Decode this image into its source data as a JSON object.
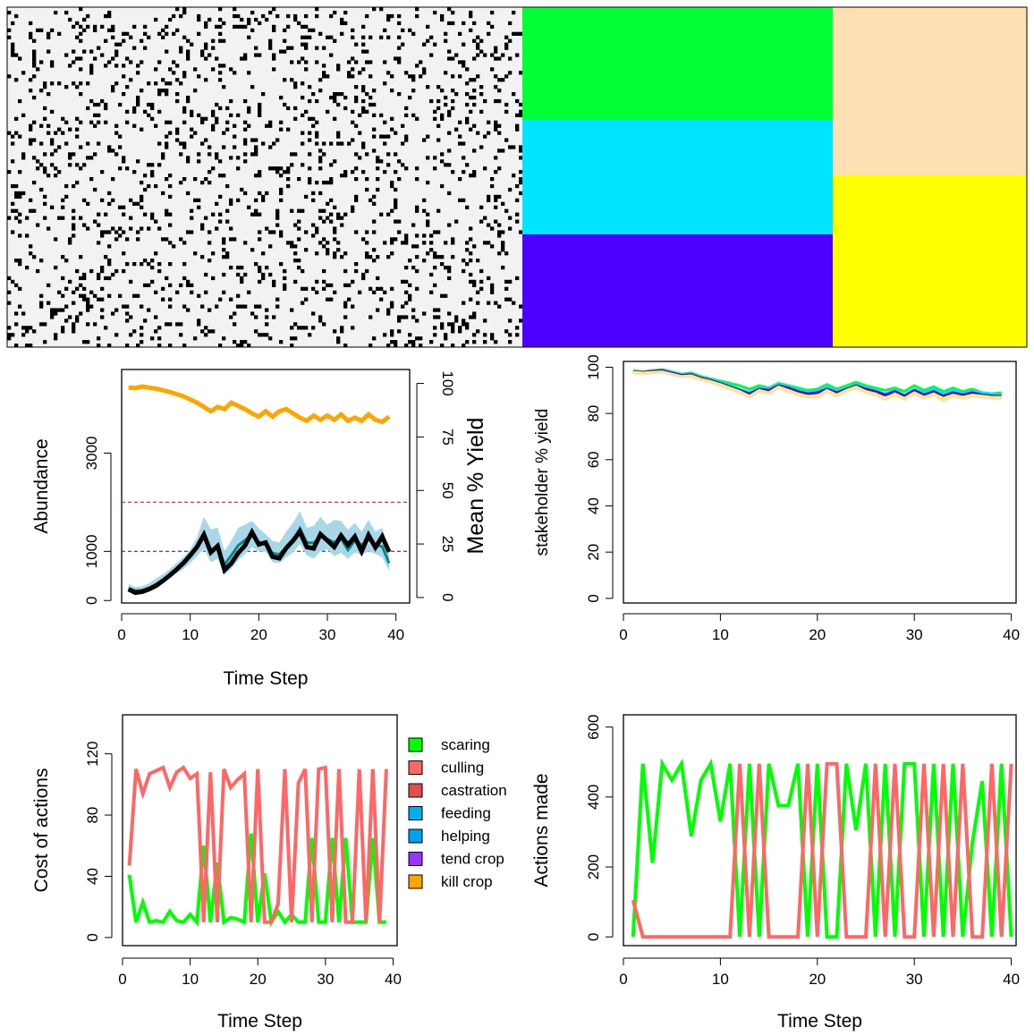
{
  "chart_data": [
    {
      "type": "heatmap",
      "panel": "landscape-agents",
      "colors": {
        "background": "#f2f2f2",
        "agent": "#000000"
      },
      "grid": {
        "cols": 144,
        "rows": 96,
        "agent_fraction": 0.12
      }
    },
    {
      "type": "heatmap",
      "panel": "landscape-ownership",
      "cells": [
        {
          "owner": 1,
          "color": "#00ff33"
        },
        {
          "owner": 2,
          "color": "#00e5ff"
        },
        {
          "owner": 3,
          "color": "#4c00ff"
        },
        {
          "owner": 4,
          "color": "#ffe0b3"
        },
        {
          "owner": 5,
          "color": "#ffff00"
        }
      ]
    },
    {
      "type": "line",
      "panel": "abundance",
      "xlabel": "Time Step",
      "ylabel": "Abundance",
      "y2label": "Mean % Yield",
      "xlim": [
        0,
        42
      ],
      "ylim": [
        -50,
        4700
      ],
      "y2lim": [
        -2.55,
        106.5
      ],
      "xticks": [
        "0",
        "10",
        "20",
        "30",
        "40"
      ],
      "yticks": [
        "0",
        "1000",
        "3000"
      ],
      "y2ticks": [
        "0",
        "25",
        "50",
        "75",
        "100"
      ],
      "ytick_values": [
        0,
        1000,
        3000
      ],
      "y2tick_values": [
        0,
        25,
        50,
        75,
        100
      ],
      "hlines": [
        {
          "value": 2000,
          "color": "#ff0000"
        },
        {
          "value": 1000,
          "color": "#0000ff"
        }
      ],
      "x": [
        1,
        2,
        3,
        4,
        5,
        6,
        7,
        8,
        9,
        10,
        11,
        12,
        13,
        14,
        15,
        16,
        17,
        18,
        19,
        20,
        21,
        22,
        23,
        24,
        25,
        26,
        27,
        28,
        29,
        30,
        31,
        32,
        33,
        34,
        35,
        36,
        37,
        38,
        39
      ],
      "series": [
        {
          "color": "#a8d8e8",
          "kind": "band",
          "lower": [
            210,
            180,
            190,
            230,
            290,
            370,
            450,
            550,
            640,
            760,
            900,
            1050,
            780,
            850,
            520,
            650,
            820,
            950,
            1080,
            1000,
            990,
            780,
            760,
            880,
            980,
            1150,
            920,
            850,
            1000,
            1040,
            900,
            970,
            850,
            980,
            930,
            1000,
            950,
            880,
            600
          ],
          "upper": [
            340,
            270,
            290,
            350,
            450,
            530,
            640,
            760,
            880,
            1040,
            1290,
            1700,
            1450,
            1480,
            1000,
            1220,
            1480,
            1540,
            1620,
            1470,
            1350,
            1210,
            1180,
            1400,
            1580,
            1820,
            1480,
            1520,
            1700,
            1540,
            1640,
            1620,
            1440,
            1580,
            1400,
            1640,
            1400,
            1480,
            1000
          ]
        },
        {
          "color": "#008b8b",
          "values": [
            250,
            200,
            210,
            260,
            330,
            420,
            520,
            640,
            760,
            900,
            1060,
            1330,
            1020,
            1100,
            730,
            920,
            1120,
            1230,
            1340,
            1190,
            1140,
            960,
            940,
            1080,
            1230,
            1470,
            1180,
            1170,
            1300,
            1250,
            1180,
            1260,
            1030,
            1220,
            1130,
            1250,
            1120,
            1100,
            760
          ]
        },
        {
          "color": "#000000",
          "values": [
            230,
            160,
            180,
            230,
            300,
            400,
            510,
            630,
            760,
            920,
            1090,
            1340,
            980,
            1110,
            620,
            760,
            970,
            1120,
            1390,
            1140,
            1180,
            890,
            860,
            1070,
            1220,
            1400,
            1090,
            1060,
            1350,
            1220,
            1090,
            1320,
            1130,
            1300,
            1000,
            1330,
            1080,
            1300,
            990
          ]
        },
        {
          "color": "#ffa500",
          "axis": "y2",
          "values": [
            98,
            97.8,
            98.5,
            98,
            97.5,
            96.8,
            96,
            95,
            94,
            92.5,
            91,
            89,
            87,
            89,
            88,
            91,
            89.5,
            88,
            86,
            84.5,
            87,
            84.5,
            87,
            88,
            86,
            84,
            82.5,
            85,
            83,
            85,
            83,
            85.5,
            82.5,
            84,
            82.5,
            85.5,
            83,
            82,
            84.5
          ]
        }
      ]
    },
    {
      "type": "line",
      "panel": "stakeholder-yield",
      "xlabel": "",
      "ylabel": "stakeholder % yield",
      "xlim": [
        0,
        40.5
      ],
      "ylim": [
        -2,
        102.5
      ],
      "xticks": [
        "0",
        "10",
        "20",
        "30",
        "40"
      ],
      "yticks": [
        "0",
        "20",
        "40",
        "60",
        "80",
        "100"
      ],
      "ytick_values": [
        0,
        20,
        40,
        60,
        80,
        100
      ],
      "x": [
        1,
        2,
        3,
        4,
        5,
        6,
        7,
        8,
        9,
        10,
        11,
        12,
        13,
        14,
        15,
        16,
        17,
        18,
        19,
        20,
        21,
        22,
        23,
        24,
        25,
        26,
        27,
        28,
        29,
        30,
        31,
        32,
        33,
        34,
        35,
        36,
        37,
        38,
        39
      ],
      "series": [
        {
          "color": "#00ff33",
          "values": [
            98.5,
            98,
            98.5,
            99,
            98,
            97,
            97.5,
            96,
            95,
            94,
            93,
            92,
            90.5,
            92,
            91,
            93,
            92,
            91,
            90,
            90.5,
            92.5,
            90.5,
            92,
            93.5,
            92,
            91,
            90,
            91,
            89.5,
            92,
            90,
            91.5,
            89.5,
            91,
            89.5,
            90.5,
            89,
            88.5,
            89
          ]
        },
        {
          "color": "#00e5ff",
          "values": [
            98,
            97.5,
            98,
            98.5,
            97.8,
            96.8,
            97,
            95.5,
            94.5,
            93.5,
            92,
            90.5,
            89,
            91,
            90.5,
            92.5,
            91.5,
            90,
            89,
            89.5,
            91.5,
            89.5,
            91,
            92.5,
            91,
            90,
            88.5,
            90,
            88,
            90.5,
            89,
            90.5,
            88.5,
            90,
            88.5,
            89.5,
            89,
            88.5,
            88
          ]
        },
        {
          "color": "#4c00ff",
          "values": [
            98,
            97.8,
            98.3,
            98.5,
            97.5,
            96.5,
            96.8,
            95.3,
            94.3,
            93,
            91.5,
            90,
            88.5,
            90.5,
            90,
            92,
            91,
            89.5,
            88.5,
            89,
            90.5,
            89,
            90.5,
            92,
            90.5,
            89.5,
            88,
            89.5,
            87.5,
            90,
            88,
            89.5,
            87.5,
            89,
            88,
            89,
            88,
            87.5,
            87.5
          ]
        },
        {
          "color": "#ffff00",
          "values": [
            97.8,
            97.5,
            97.8,
            98,
            97,
            96,
            96.3,
            94.8,
            93.8,
            92.5,
            91,
            89.5,
            87.5,
            90,
            89,
            91.5,
            90,
            88.5,
            87.5,
            87.5,
            90,
            88,
            90,
            91.5,
            89.5,
            88.5,
            86.5,
            88.5,
            86.5,
            89,
            87,
            88.5,
            86.5,
            88,
            87,
            88,
            87.5,
            87,
            87
          ]
        },
        {
          "color": "#ffe0b3",
          "values": [
            97.5,
            97.2,
            97.5,
            97.8,
            96.8,
            95.8,
            96,
            94.5,
            93.5,
            92,
            90.5,
            89,
            87,
            89.5,
            88.5,
            91,
            89.5,
            88,
            87,
            87,
            89.5,
            87.5,
            89.5,
            91,
            89,
            88,
            86,
            88,
            86,
            88.5,
            86.5,
            88,
            85.5,
            87.5,
            86.5,
            87.5,
            87,
            86.5,
            86.5
          ]
        }
      ]
    },
    {
      "type": "line",
      "panel": "action-costs",
      "xlabel": "Time Step",
      "ylabel": "Cost of actions",
      "xlim": [
        0,
        40.6
      ],
      "ylim": [
        -5.3,
        145.5
      ],
      "xticks": [
        "0",
        "10",
        "20",
        "30",
        "40"
      ],
      "yticks": [
        "0",
        "40",
        "80",
        "120"
      ],
      "ytick_values": [
        0,
        40,
        80,
        120
      ],
      "x": [
        1,
        2,
        3,
        4,
        5,
        6,
        7,
        8,
        9,
        10,
        11,
        12,
        13,
        14,
        15,
        16,
        17,
        18,
        19,
        20,
        21,
        22,
        23,
        24,
        25,
        26,
        27,
        28,
        29,
        30,
        31,
        32,
        33,
        34,
        35,
        36,
        37,
        38,
        39
      ],
      "series": [
        {
          "name": "scaring",
          "color": "#00ff00",
          "values": [
            41,
            10,
            23,
            10,
            11,
            10,
            17,
            11,
            10,
            15,
            10,
            60,
            10,
            49,
            10,
            13,
            12,
            10,
            68,
            10,
            42,
            10,
            17,
            10,
            15,
            10,
            10,
            65,
            10,
            10,
            65,
            10,
            65,
            10,
            10,
            10,
            65,
            10,
            10
          ]
        },
        {
          "name": "culling",
          "color": "#ff6666",
          "values": [
            47,
            110,
            94,
            107,
            109,
            111,
            98,
            108,
            111,
            104,
            107,
            10,
            108,
            10,
            110,
            98,
            103,
            107,
            10,
            110,
            10,
            10,
            22,
            110,
            10,
            101,
            110,
            10,
            110,
            111,
            10,
            110,
            10,
            10,
            110,
            10,
            110,
            10,
            110
          ]
        }
      ],
      "legend": {
        "position": "right",
        "entries": [
          {
            "label": "scaring",
            "color": "#00ff00"
          },
          {
            "label": "culling",
            "color": "#ff6666"
          },
          {
            "label": "castration",
            "color": "#e05050"
          },
          {
            "label": "feeding",
            "color": "#00b0e8"
          },
          {
            "label": "helping",
            "color": "#00a0f0"
          },
          {
            "label": "tend crop",
            "color": "#9933ff"
          },
          {
            "label": "kill crop",
            "color": "#ffa500"
          }
        ]
      }
    },
    {
      "type": "line",
      "panel": "actions-made",
      "xlabel": "Time Step",
      "ylabel": "Actions made",
      "xlim": [
        0,
        40.5
      ],
      "ylim": [
        -25,
        635
      ],
      "xticks": [
        "0",
        "10",
        "20",
        "30",
        "40"
      ],
      "yticks": [
        "0",
        "200",
        "400",
        "600"
      ],
      "ytick_values": [
        0,
        200,
        400,
        600
      ],
      "x": [
        1,
        2,
        3,
        4,
        5,
        6,
        7,
        8,
        9,
        10,
        11,
        12,
        13,
        14,
        15,
        16,
        17,
        18,
        19,
        20,
        21,
        22,
        23,
        24,
        25,
        26,
        27,
        28,
        29,
        30,
        31,
        32,
        33,
        34,
        35,
        36,
        37,
        38,
        39,
        40
      ],
      "series": [
        {
          "name": "scaring",
          "color": "#00ff00",
          "values": [
            0,
            495,
            212,
            495,
            448,
            495,
            288,
            448,
            495,
            330,
            495,
            0,
            495,
            0,
            495,
            375,
            375,
            495,
            0,
            495,
            0,
            0,
            495,
            305,
            495,
            0,
            495,
            0,
            495,
            495,
            0,
            495,
            0,
            495,
            0,
            270,
            445,
            0,
            495,
            0
          ]
        },
        {
          "name": "culling",
          "color": "#ff6666",
          "values": [
            105,
            0,
            0,
            0,
            0,
            0,
            0,
            0,
            0,
            0,
            0,
            495,
            0,
            495,
            0,
            0,
            0,
            0,
            495,
            0,
            495,
            495,
            0,
            0,
            0,
            495,
            0,
            495,
            0,
            0,
            495,
            0,
            495,
            0,
            495,
            0,
            0,
            495,
            0,
            495
          ]
        }
      ]
    }
  ]
}
